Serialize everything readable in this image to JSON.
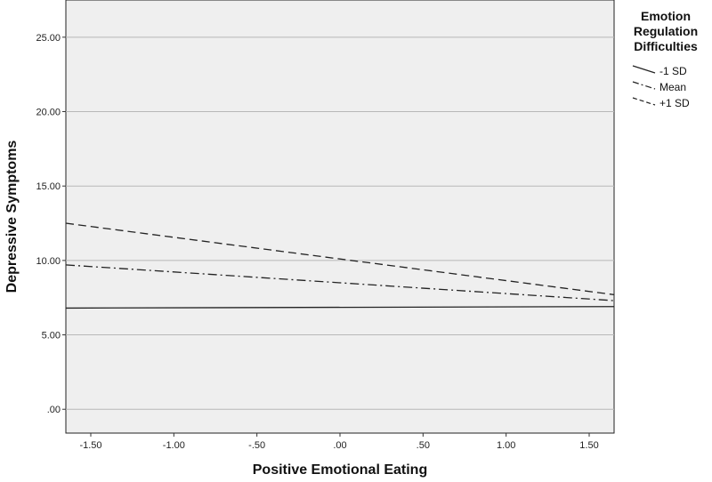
{
  "chart_data": {
    "type": "line",
    "xlabel": "Positive Emotional Eating",
    "ylabel": "Depressive Symptoms",
    "xlim": [
      -1.65,
      1.65
    ],
    "ylim": [
      -1.6,
      27.5
    ],
    "x_ticks": [
      "-1.50",
      "-1.00",
      "-.50",
      ".00",
      ".50",
      "1.00",
      "1.50"
    ],
    "x_tick_values": [
      -1.5,
      -1.0,
      -0.5,
      0.0,
      0.5,
      1.0,
      1.5
    ],
    "y_ticks": [
      ".00",
      "5.00",
      "10.00",
      "15.00",
      "20.00",
      "25.00"
    ],
    "y_tick_values": [
      0,
      5,
      10,
      15,
      20,
      25
    ],
    "grid": "horizontal",
    "background": "#efefef",
    "legend": {
      "title_lines": [
        "Emotion",
        "Regulation",
        "Difficulties"
      ],
      "placement": "right"
    },
    "series": [
      {
        "name": "-1 SD",
        "dash": "solid",
        "x": [
          -1.65,
          1.65
        ],
        "y": [
          6.8,
          6.9
        ]
      },
      {
        "name": "Mean",
        "dash": "dash-dot",
        "x": [
          -1.65,
          1.65
        ],
        "y": [
          9.7,
          7.3
        ]
      },
      {
        "name": "+1 SD",
        "dash": "dashed",
        "x": [
          -1.65,
          1.65
        ],
        "y": [
          12.5,
          7.7
        ]
      }
    ]
  }
}
